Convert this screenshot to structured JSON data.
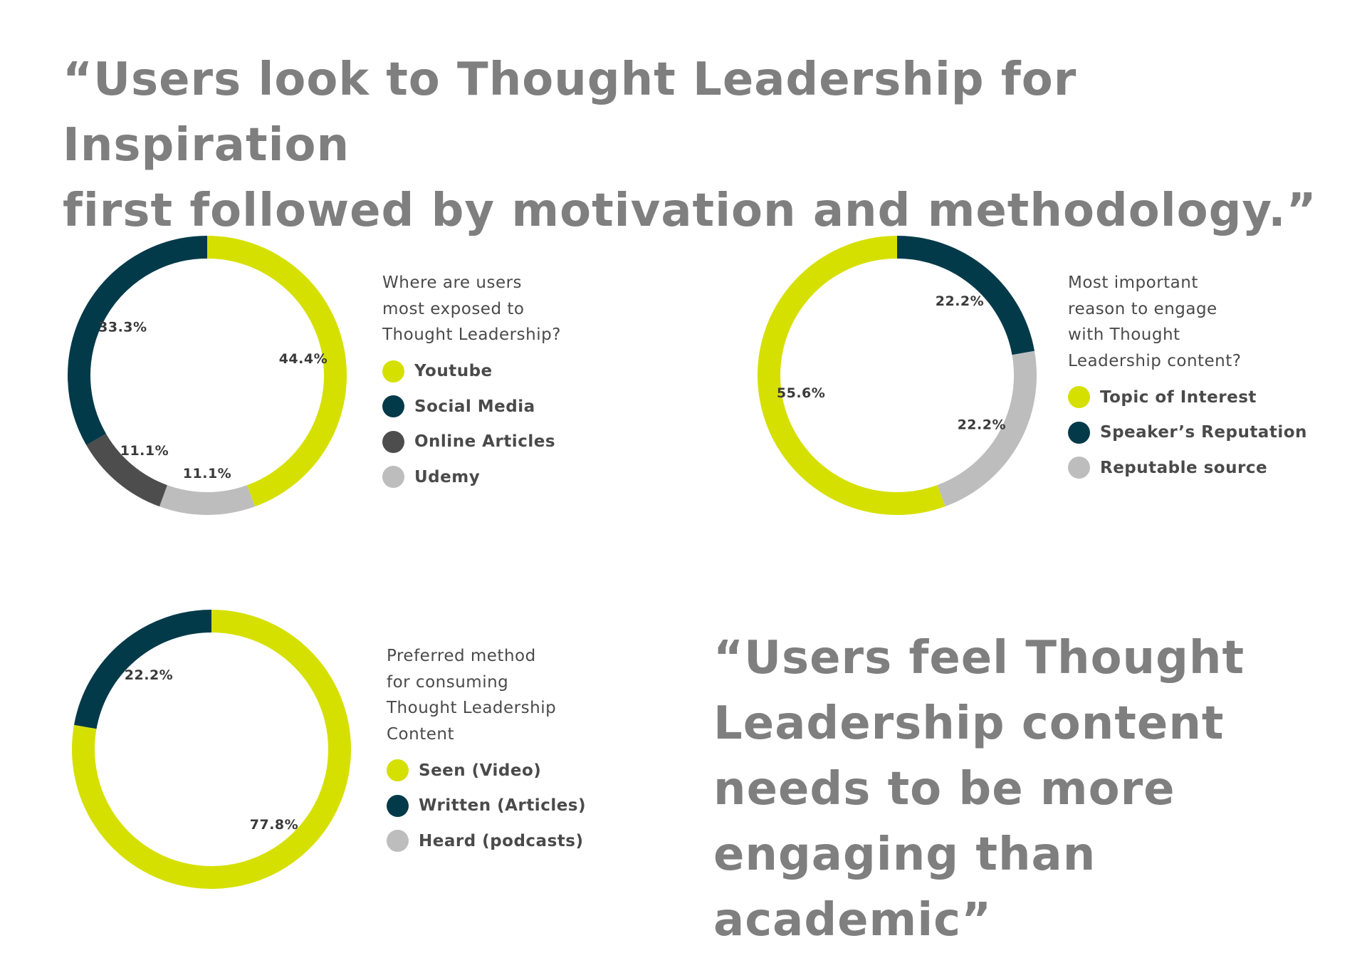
{
  "quotes": {
    "top": "“Users look to Thought Leadership for Inspiration\nfirst followed by motivation and methodology.”",
    "bottom": "“Users feel Thought\nLeadership content\nneeds to be more\nengaging than academic”"
  },
  "colors": {
    "lime": "#d6e000",
    "navy": "#033a4a",
    "dark_gray": "#4d4d4d",
    "light_gray": "#bdbdbd"
  },
  "chart_data": [
    {
      "type": "pie",
      "title": "Where are users\nmost exposed to\nThought Leadership?",
      "slices": [
        {
          "label": "Youtube",
          "value": 44.4,
          "value_label": "44.4%",
          "color": "#d6e000"
        },
        {
          "label": "Social Media",
          "value": 33.3,
          "value_label": "33.3%",
          "color": "#033a4a"
        },
        {
          "label": "Online Articles",
          "value": 11.1,
          "value_label": "11.1%",
          "color": "#4d4d4d"
        },
        {
          "label": "Udemy",
          "value": 11.1,
          "value_label": "11.1%",
          "color": "#bdbdbd"
        }
      ],
      "legend_order": [
        "Youtube",
        "Social Media",
        "Online Articles",
        "Udemy"
      ],
      "legend_position": "right"
    },
    {
      "type": "pie",
      "title": "Most important\nreason to engage\nwith Thought\nLeadership content?",
      "slices": [
        {
          "label": "Topic of Interest",
          "value": 55.6,
          "value_label": "55.6%",
          "color": "#d6e000"
        },
        {
          "label": "Speaker’s Reputation",
          "value": 22.2,
          "value_label": "22.2%",
          "color": "#033a4a"
        },
        {
          "label": "Reputable source",
          "value": 22.2,
          "value_label": "22.2%",
          "color": "#bdbdbd"
        }
      ],
      "legend_order": [
        "Topic of Interest",
        "Speaker’s Reputation",
        "Reputable source"
      ],
      "legend_position": "right"
    },
    {
      "type": "pie",
      "title": "Preferred method\nfor consuming\nThought Leadership\nContent",
      "slices": [
        {
          "label": "Seen (Video)",
          "value": 77.8,
          "value_label": "77.8%",
          "color": "#d6e000"
        },
        {
          "label": "Written (Articles)",
          "value": 22.2,
          "value_label": "22.2%",
          "color": "#033a4a"
        },
        {
          "label": "Heard (podcasts)",
          "value": 0,
          "value_label": "",
          "color": "#bdbdbd"
        }
      ],
      "legend_order": [
        "Seen (Video)",
        "Written (Articles)",
        "Heard (podcasts)"
      ],
      "legend_position": "right"
    }
  ]
}
